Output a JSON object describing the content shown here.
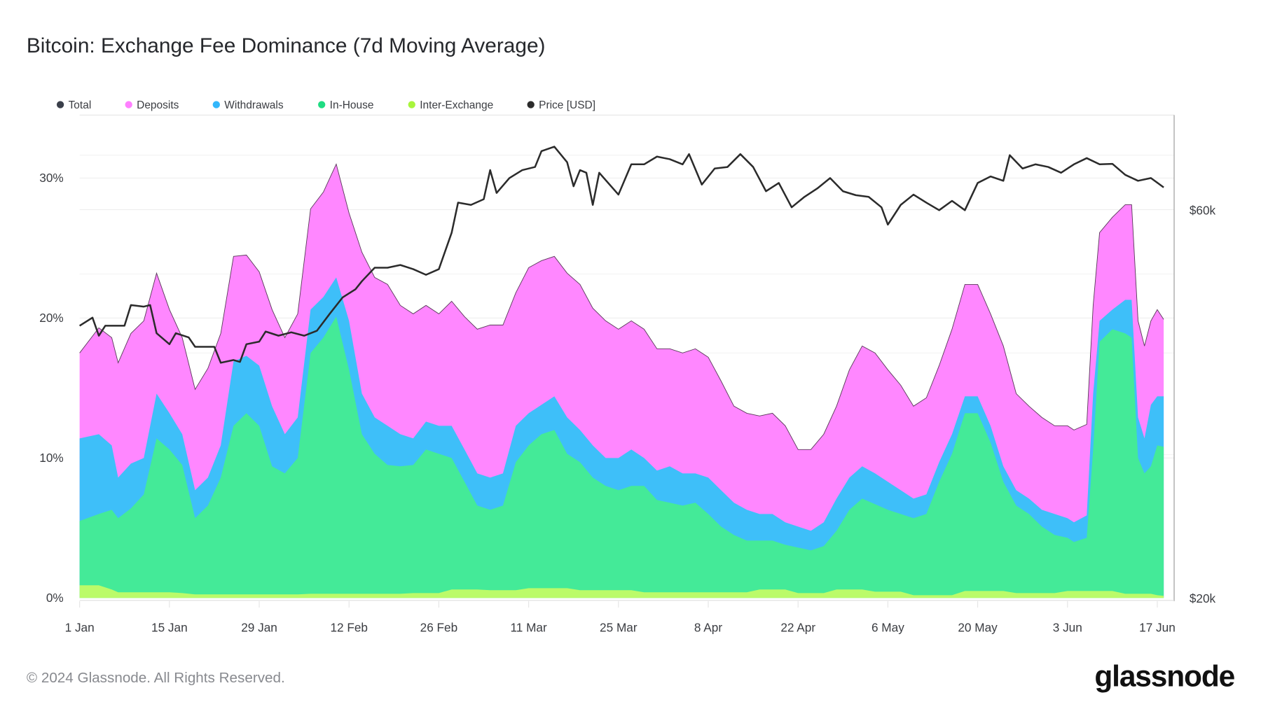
{
  "chart_data": {
    "type": "area",
    "stacked": true,
    "title": "Bitcoin: Exchange Fee Dominance (7d Moving Average)",
    "legend_position": "top-left",
    "legend": [
      {
        "name": "Total",
        "color": "#3a3f4a"
      },
      {
        "name": "Deposits",
        "color": "#ff80ff"
      },
      {
        "name": "Withdrawals",
        "color": "#33b7fb"
      },
      {
        "name": "In-House",
        "color": "#1fdc82"
      },
      {
        "name": "Inter-Exchange",
        "color": "#a8f53c"
      },
      {
        "name": "Price [USD]",
        "color": "#2b2b2b"
      }
    ],
    "fill_colors": {
      "Deposits": "#ff87ff",
      "Withdrawals": "#3ebff9",
      "In-House": "#44ea98",
      "Inter-Exchange": "#bbfb69"
    },
    "x_ticks": [
      "1 Jan",
      "15 Jan",
      "29 Jan",
      "12 Feb",
      "26 Feb",
      "11 Mar",
      "25 Mar",
      "8 Apr",
      "22 Apr",
      "6 May",
      "20 May",
      "3 Jun",
      "17 Jun"
    ],
    "x_tick_dates": [
      "2024-01-01",
      "2024-01-15",
      "2024-01-29",
      "2024-02-12",
      "2024-02-26",
      "2024-03-11",
      "2024-03-25",
      "2024-04-08",
      "2024-04-22",
      "2024-05-06",
      "2024-05-20",
      "2024-06-03",
      "2024-06-17"
    ],
    "xlim": [
      "2024-01-01",
      "2024-06-19"
    ],
    "y_left": {
      "ticks": [
        "0%",
        "10%",
        "20%",
        "30%"
      ],
      "tick_values": [
        0,
        10,
        20,
        30
      ],
      "range": [
        0,
        34.5
      ],
      "unit": "%"
    },
    "y_right": {
      "ticks": [
        "$20k",
        "$60k"
      ],
      "tick_values": [
        20000,
        60000
      ],
      "range": [
        20000,
        78400
      ],
      "scale": "log"
    },
    "grid": true,
    "columns": [
      "date",
      "Inter-Exchange",
      "In-House",
      "Withdrawals",
      "Deposits"
    ],
    "rows": [
      [
        "2024-01-01",
        0.9,
        4.6,
        5.9,
        6.1
      ],
      [
        "2024-01-04",
        0.9,
        5.1,
        5.7,
        7.6
      ],
      [
        "2024-01-06",
        0.6,
        5.7,
        4.6,
        7.7
      ],
      [
        "2024-01-07",
        0.4,
        5.3,
        2.9,
        8.2
      ],
      [
        "2024-01-09",
        0.4,
        6.0,
        3.2,
        9.3
      ],
      [
        "2024-01-11",
        0.4,
        7.0,
        2.6,
        9.8
      ],
      [
        "2024-01-13",
        0.4,
        11.0,
        3.2,
        8.6
      ],
      [
        "2024-01-15",
        0.4,
        10.2,
        2.6,
        7.4
      ],
      [
        "2024-01-17",
        0.35,
        9.15,
        2.2,
        6.9
      ],
      [
        "2024-01-19",
        0.25,
        5.45,
        2.0,
        7.2
      ],
      [
        "2024-01-21",
        0.25,
        6.35,
        2.0,
        7.8
      ],
      [
        "2024-01-23",
        0.25,
        8.35,
        2.3,
        8.0
      ],
      [
        "2024-01-25",
        0.25,
        12.05,
        4.6,
        7.5
      ],
      [
        "2024-01-27",
        0.25,
        12.95,
        4.1,
        7.2
      ],
      [
        "2024-01-29",
        0.25,
        12.05,
        4.3,
        6.7
      ],
      [
        "2024-01-31",
        0.25,
        9.15,
        4.3,
        6.9
      ],
      [
        "2024-02-02",
        0.25,
        8.65,
        2.8,
        6.9
      ],
      [
        "2024-02-04",
        0.25,
        9.75,
        2.9,
        7.4
      ],
      [
        "2024-02-06",
        0.3,
        17.2,
        3.1,
        7.2
      ],
      [
        "2024-02-08",
        0.3,
        18.3,
        2.9,
        7.5
      ],
      [
        "2024-02-10",
        0.3,
        19.8,
        2.8,
        8.1
      ],
      [
        "2024-02-12",
        0.3,
        16.0,
        3.5,
        7.7
      ],
      [
        "2024-02-14",
        0.3,
        11.4,
        2.9,
        10.1
      ],
      [
        "2024-02-16",
        0.3,
        10.0,
        2.6,
        10.0
      ],
      [
        "2024-02-18",
        0.3,
        9.2,
        2.8,
        10.1
      ],
      [
        "2024-02-20",
        0.3,
        9.1,
        2.3,
        9.2
      ],
      [
        "2024-02-22",
        0.35,
        9.15,
        1.9,
        8.9
      ],
      [
        "2024-02-24",
        0.35,
        10.25,
        2.0,
        8.3
      ],
      [
        "2024-02-26",
        0.35,
        9.95,
        2.0,
        8.0
      ],
      [
        "2024-02-28",
        0.6,
        9.4,
        2.3,
        8.9
      ],
      [
        "2024-03-01",
        0.6,
        7.7,
        2.3,
        9.5
      ],
      [
        "2024-03-03",
        0.6,
        6.0,
        2.3,
        10.3
      ],
      [
        "2024-03-05",
        0.55,
        5.75,
        2.3,
        10.9
      ],
      [
        "2024-03-07",
        0.55,
        6.05,
        2.3,
        10.6
      ],
      [
        "2024-03-09",
        0.55,
        9.15,
        2.6,
        9.5
      ],
      [
        "2024-03-11",
        0.7,
        10.2,
        2.3,
        10.4
      ],
      [
        "2024-03-13",
        0.7,
        11.0,
        2.1,
        10.3
      ],
      [
        "2024-03-15",
        0.7,
        11.3,
        2.4,
        10.0
      ],
      [
        "2024-03-17",
        0.7,
        9.6,
        2.6,
        10.3
      ],
      [
        "2024-03-19",
        0.55,
        9.15,
        2.3,
        10.4
      ],
      [
        "2024-03-21",
        0.55,
        8.05,
        2.3,
        9.8
      ],
      [
        "2024-03-23",
        0.55,
        7.45,
        2.0,
        9.8
      ],
      [
        "2024-03-25",
        0.55,
        7.15,
        2.3,
        9.2
      ],
      [
        "2024-03-27",
        0.55,
        7.45,
        2.6,
        9.2
      ],
      [
        "2024-03-29",
        0.4,
        7.6,
        2.0,
        9.2
      ],
      [
        "2024-03-31",
        0.4,
        6.6,
        2.1,
        8.7
      ],
      [
        "2024-04-02",
        0.4,
        6.4,
        2.6,
        8.4
      ],
      [
        "2024-04-04",
        0.4,
        6.2,
        2.3,
        8.6
      ],
      [
        "2024-04-06",
        0.4,
        6.4,
        2.1,
        8.9
      ],
      [
        "2024-04-08",
        0.4,
        5.6,
        2.6,
        8.6
      ],
      [
        "2024-04-10",
        0.4,
        4.7,
        2.6,
        7.8
      ],
      [
        "2024-04-12",
        0.4,
        4.1,
        2.3,
        6.9
      ],
      [
        "2024-04-14",
        0.4,
        3.7,
        2.2,
        6.9
      ],
      [
        "2024-04-16",
        0.6,
        3.5,
        1.9,
        7.0
      ],
      [
        "2024-04-18",
        0.6,
        3.5,
        1.9,
        7.2
      ],
      [
        "2024-04-20",
        0.6,
        3.2,
        1.6,
        6.9
      ],
      [
        "2024-04-22",
        0.35,
        3.25,
        1.5,
        5.5
      ],
      [
        "2024-04-24",
        0.35,
        3.05,
        1.4,
        5.8
      ],
      [
        "2024-04-26",
        0.35,
        3.35,
        1.7,
        6.3
      ],
      [
        "2024-04-28",
        0.6,
        4.2,
        2.3,
        6.6
      ],
      [
        "2024-04-30",
        0.6,
        5.7,
        2.3,
        7.7
      ],
      [
        "2024-05-02",
        0.6,
        6.5,
        2.3,
        8.6
      ],
      [
        "2024-05-04",
        0.45,
        6.25,
        2.2,
        8.6
      ],
      [
        "2024-05-06",
        0.45,
        5.85,
        2.0,
        8.0
      ],
      [
        "2024-05-08",
        0.45,
        5.55,
        1.7,
        7.5
      ],
      [
        "2024-05-10",
        0.2,
        5.5,
        1.4,
        6.6
      ],
      [
        "2024-05-12",
        0.2,
        5.8,
        1.4,
        6.9
      ],
      [
        "2024-05-14",
        0.2,
        8.1,
        1.4,
        6.9
      ],
      [
        "2024-05-16",
        0.2,
        10.1,
        1.4,
        7.5
      ],
      [
        "2024-05-18",
        0.5,
        12.7,
        1.2,
        8.0
      ],
      [
        "2024-05-20",
        0.5,
        12.7,
        1.2,
        8.0
      ],
      [
        "2024-05-22",
        0.5,
        10.6,
        1.2,
        8.0
      ],
      [
        "2024-05-24",
        0.5,
        7.8,
        1.1,
        8.6
      ],
      [
        "2024-05-26",
        0.35,
        6.25,
        1.1,
        6.9
      ],
      [
        "2024-05-28",
        0.35,
        5.65,
        1.1,
        6.6
      ],
      [
        "2024-05-30",
        0.35,
        4.75,
        1.2,
        6.6
      ],
      [
        "2024-06-01",
        0.35,
        4.15,
        1.5,
        6.3
      ],
      [
        "2024-06-03",
        0.5,
        3.8,
        1.4,
        6.6
      ],
      [
        "2024-06-04",
        0.5,
        3.5,
        1.4,
        6.6
      ],
      [
        "2024-06-06",
        0.5,
        3.8,
        1.6,
        6.5
      ],
      [
        "2024-06-07",
        0.5,
        10.1,
        4.0,
        6.3
      ],
      [
        "2024-06-08",
        0.5,
        17.8,
        1.5,
        6.3
      ],
      [
        "2024-06-10",
        0.5,
        18.7,
        1.4,
        6.6
      ],
      [
        "2024-06-12",
        0.3,
        18.6,
        2.4,
        6.8
      ],
      [
        "2024-06-13",
        0.3,
        18.3,
        2.7,
        6.8
      ],
      [
        "2024-06-14",
        0.3,
        9.7,
        2.9,
        6.9
      ],
      [
        "2024-06-15",
        0.3,
        8.6,
        2.5,
        6.6
      ],
      [
        "2024-06-16",
        0.3,
        9.1,
        4.4,
        6.0
      ],
      [
        "2024-06-17",
        0.2,
        10.7,
        3.5,
        6.2
      ],
      [
        "2024-06-18",
        0.15,
        10.65,
        3.6,
        5.5
      ]
    ],
    "price_usd": [
      [
        "2024-01-01",
        43200
      ],
      [
        "2024-01-03",
        44200
      ],
      [
        "2024-01-04",
        42000
      ],
      [
        "2024-01-05",
        43200
      ],
      [
        "2024-01-08",
        43200
      ],
      [
        "2024-01-09",
        45800
      ],
      [
        "2024-01-11",
        45600
      ],
      [
        "2024-01-12",
        45800
      ],
      [
        "2024-01-13",
        42300
      ],
      [
        "2024-01-15",
        41000
      ],
      [
        "2024-01-16",
        42300
      ],
      [
        "2024-01-18",
        41800
      ],
      [
        "2024-01-19",
        40700
      ],
      [
        "2024-01-22",
        40700
      ],
      [
        "2024-01-23",
        38900
      ],
      [
        "2024-01-25",
        39200
      ],
      [
        "2024-01-26",
        39000
      ],
      [
        "2024-01-27",
        41000
      ],
      [
        "2024-01-29",
        41300
      ],
      [
        "2024-01-30",
        42500
      ],
      [
        "2024-02-01",
        42000
      ],
      [
        "2024-02-03",
        42400
      ],
      [
        "2024-02-05",
        42000
      ],
      [
        "2024-02-07",
        42600
      ],
      [
        "2024-02-09",
        44700
      ],
      [
        "2024-02-11",
        46800
      ],
      [
        "2024-02-13",
        47900
      ],
      [
        "2024-02-14",
        49000
      ],
      [
        "2024-02-16",
        50900
      ],
      [
        "2024-02-18",
        50900
      ],
      [
        "2024-02-20",
        51300
      ],
      [
        "2024-02-22",
        50700
      ],
      [
        "2024-02-24",
        49900
      ],
      [
        "2024-02-26",
        50700
      ],
      [
        "2024-02-28",
        56200
      ],
      [
        "2024-02-29",
        61200
      ],
      [
        "2024-03-02",
        60800
      ],
      [
        "2024-03-04",
        61800
      ],
      [
        "2024-03-05",
        67100
      ],
      [
        "2024-03-06",
        62900
      ],
      [
        "2024-03-08",
        65600
      ],
      [
        "2024-03-10",
        67100
      ],
      [
        "2024-03-12",
        67700
      ],
      [
        "2024-03-13",
        70800
      ],
      [
        "2024-03-15",
        71700
      ],
      [
        "2024-03-17",
        68600
      ],
      [
        "2024-03-18",
        64100
      ],
      [
        "2024-03-19",
        67100
      ],
      [
        "2024-03-20",
        66600
      ],
      [
        "2024-03-21",
        60800
      ],
      [
        "2024-03-22",
        66600
      ],
      [
        "2024-03-25",
        62600
      ],
      [
        "2024-03-27",
        68200
      ],
      [
        "2024-03-29",
        68200
      ],
      [
        "2024-03-31",
        69700
      ],
      [
        "2024-04-02",
        69200
      ],
      [
        "2024-04-04",
        68200
      ],
      [
        "2024-04-05",
        70200
      ],
      [
        "2024-04-07",
        64400
      ],
      [
        "2024-04-09",
        67400
      ],
      [
        "2024-04-11",
        67700
      ],
      [
        "2024-04-13",
        70200
      ],
      [
        "2024-04-15",
        67700
      ],
      [
        "2024-04-17",
        63200
      ],
      [
        "2024-04-19",
        64700
      ],
      [
        "2024-04-21",
        60400
      ],
      [
        "2024-04-23",
        62200
      ],
      [
        "2024-04-25",
        63700
      ],
      [
        "2024-04-27",
        65600
      ],
      [
        "2024-04-29",
        63200
      ],
      [
        "2024-05-01",
        62500
      ],
      [
        "2024-05-03",
        62200
      ],
      [
        "2024-05-05",
        60400
      ],
      [
        "2024-05-06",
        57500
      ],
      [
        "2024-05-08",
        60800
      ],
      [
        "2024-05-10",
        62600
      ],
      [
        "2024-05-12",
        61200
      ],
      [
        "2024-05-14",
        59900
      ],
      [
        "2024-05-16",
        61500
      ],
      [
        "2024-05-18",
        59900
      ],
      [
        "2024-05-20",
        64700
      ],
      [
        "2024-05-22",
        65900
      ],
      [
        "2024-05-24",
        65100
      ],
      [
        "2024-05-25",
        70000
      ],
      [
        "2024-05-27",
        67400
      ],
      [
        "2024-05-29",
        68200
      ],
      [
        "2024-05-31",
        67700
      ],
      [
        "2024-06-02",
        66600
      ],
      [
        "2024-06-04",
        68200
      ],
      [
        "2024-06-06",
        69400
      ],
      [
        "2024-06-08",
        68200
      ],
      [
        "2024-06-10",
        68300
      ],
      [
        "2024-06-12",
        66200
      ],
      [
        "2024-06-14",
        65100
      ],
      [
        "2024-06-16",
        65600
      ],
      [
        "2024-06-18",
        63900
      ]
    ]
  },
  "footer": {
    "copyright": "© 2024 Glassnode. All Rights Reserved.",
    "logo": "glassnode"
  }
}
